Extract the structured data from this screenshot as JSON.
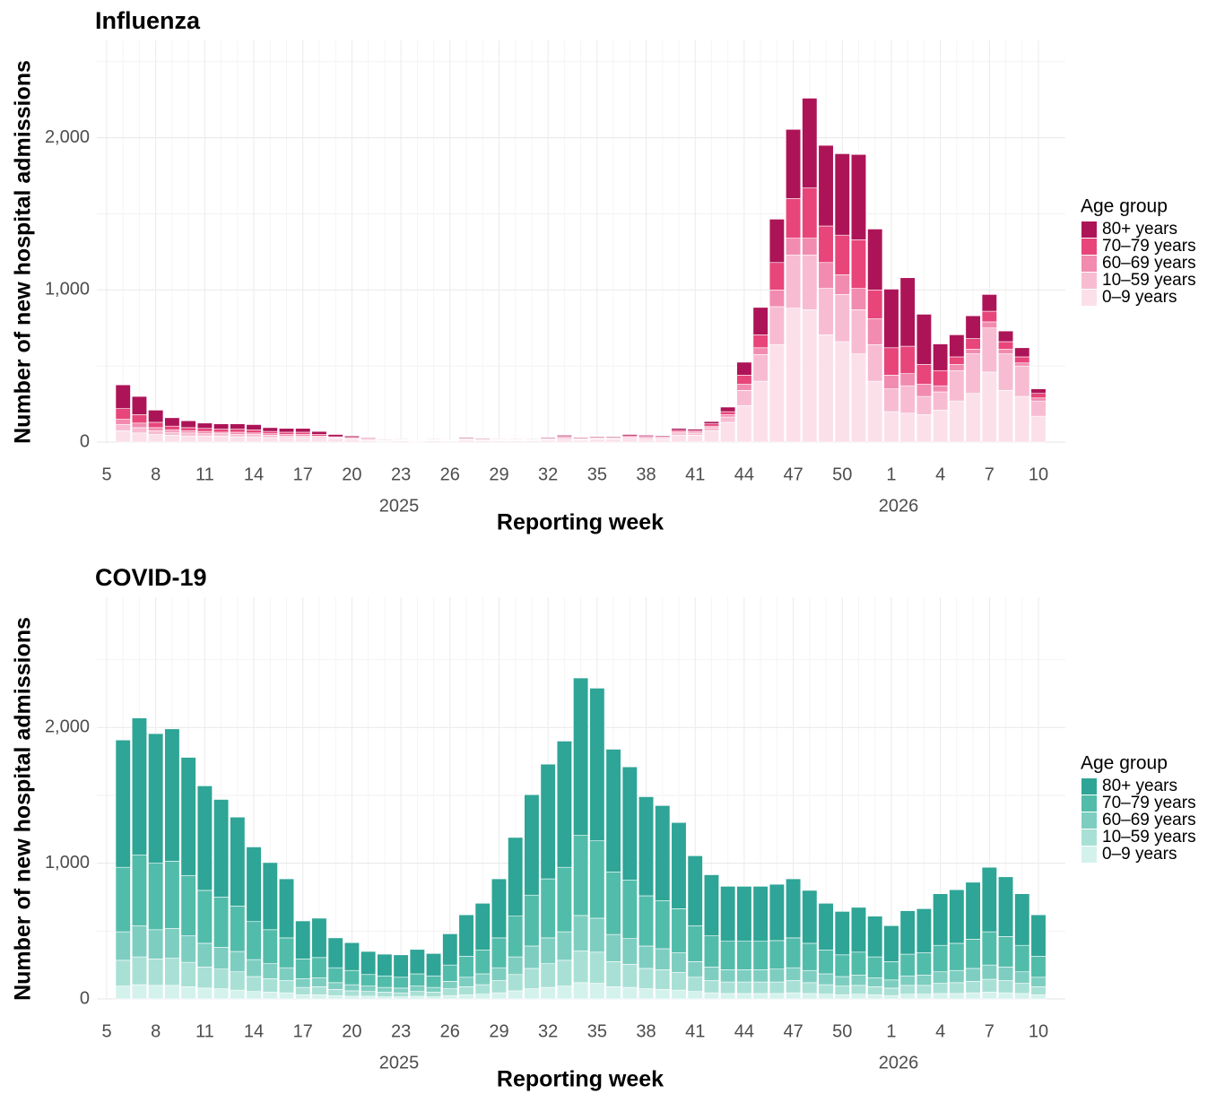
{
  "chart_data": [
    {
      "type": "bar",
      "stacked": true,
      "title": "Influenza",
      "x_label": "Reporting week",
      "y_label": "Number of new hospital admissions",
      "legend_title": "Age group",
      "legend_position": "right",
      "grid": true,
      "categories": [
        "5",
        null,
        null,
        "8",
        null,
        null,
        "11",
        null,
        null,
        "14",
        null,
        null,
        "17",
        null,
        null,
        "20",
        null,
        null,
        "23",
        null,
        null,
        "26",
        null,
        null,
        "29",
        null,
        null,
        "32",
        null,
        null,
        "35",
        null,
        null,
        "38",
        null,
        null,
        "41",
        null,
        null,
        "44",
        null,
        null,
        "47",
        null,
        null,
        "50",
        null,
        null,
        "1",
        null,
        null,
        "4",
        null,
        null,
        "7",
        null,
        null,
        "10"
      ],
      "x_group_labels": [
        "2025",
        "2026"
      ],
      "ylim": [
        0,
        2640
      ],
      "yticks": [
        0,
        {
          "value": 1000,
          "label": "1,000"
        },
        {
          "value": 2000,
          "label": "2,000"
        }
      ],
      "y_minor_gridlines": [
        500,
        1500,
        2500
      ],
      "series": [
        {
          "name": "80+ years",
          "color": "#ad1457",
          "values": [
            null,
            156,
            120,
            80,
            55,
            45,
            35,
            35,
            35,
            35,
            25,
            25,
            25,
            20,
            15,
            10,
            5,
            4,
            4,
            2,
            4,
            3,
            6,
            5,
            4,
            4,
            4,
            6,
            8,
            6,
            6,
            6,
            9,
            8,
            7,
            12,
            10,
            15,
            30,
            85,
            180,
            285,
            455,
            590,
            530,
            535,
            560,
            400,
            385,
            450,
            330,
            175,
            145,
            150,
            110,
            70,
            60,
            30
          ]
        },
        {
          "name": "70–79 years",
          "color": "#e8457a",
          "values": [
            null,
            70,
            55,
            35,
            25,
            20,
            20,
            20,
            20,
            20,
            15,
            15,
            15,
            10,
            5,
            5,
            5,
            2,
            3,
            1,
            3,
            2,
            4,
            3,
            3,
            3,
            3,
            4,
            6,
            4,
            5,
            5,
            7,
            6,
            6,
            10,
            9,
            15,
            20,
            60,
            85,
            180,
            260,
            330,
            240,
            260,
            320,
            190,
            180,
            180,
            130,
            100,
            50,
            70,
            70,
            50,
            40,
            30
          ]
        },
        {
          "name": "60–69 years",
          "color": "#f28bb0",
          "values": [
            null,
            35,
            30,
            20,
            15,
            15,
            15,
            10,
            15,
            10,
            10,
            10,
            10,
            5,
            5,
            5,
            5,
            2,
            2,
            1,
            2,
            2,
            3,
            3,
            2,
            2,
            2,
            3,
            5,
            3,
            4,
            4,
            5,
            5,
            4,
            8,
            7,
            10,
            15,
            40,
            45,
            110,
            110,
            110,
            170,
            130,
            140,
            170,
            90,
            80,
            80,
            40,
            40,
            30,
            40,
            30,
            20,
            20
          ]
        },
        {
          "name": "10–59 years",
          "color": "#f7bcd2",
          "values": [
            null,
            40,
            35,
            25,
            20,
            20,
            15,
            15,
            15,
            15,
            15,
            10,
            10,
            10,
            5,
            5,
            5,
            2,
            3,
            2,
            3,
            2,
            5,
            4,
            3,
            3,
            3,
            5,
            8,
            5,
            6,
            6,
            9,
            8,
            7,
            15,
            14,
            20,
            35,
            100,
            175,
            250,
            350,
            360,
            305,
            310,
            290,
            240,
            150,
            180,
            120,
            120,
            200,
            260,
            290,
            240,
            200,
            100
          ]
        },
        {
          "name": "0–9 years",
          "color": "#fbe0ea",
          "values": [
            null,
            75,
            60,
            50,
            45,
            40,
            40,
            40,
            35,
            35,
            30,
            30,
            30,
            25,
            20,
            15,
            10,
            5,
            8,
            4,
            8,
            6,
            12,
            10,
            8,
            8,
            8,
            12,
            18,
            12,
            14,
            14,
            20,
            18,
            16,
            45,
            45,
            75,
            130,
            240,
            400,
            640,
            880,
            870,
            705,
            660,
            580,
            400,
            200,
            190,
            180,
            210,
            270,
            320,
            460,
            340,
            300,
            170
          ]
        }
      ]
    },
    {
      "type": "bar",
      "stacked": true,
      "title": "COVID-19",
      "x_label": "Reporting week",
      "y_label": "Number of new hospital admissions",
      "legend_title": "Age group",
      "legend_position": "right",
      "grid": true,
      "categories": [
        "5",
        null,
        null,
        "8",
        null,
        null,
        "11",
        null,
        null,
        "14",
        null,
        null,
        "17",
        null,
        null,
        "20",
        null,
        null,
        "23",
        null,
        null,
        "26",
        null,
        null,
        "29",
        null,
        null,
        "32",
        null,
        null,
        "35",
        null,
        null,
        "38",
        null,
        null,
        "41",
        null,
        null,
        "44",
        null,
        null,
        "47",
        null,
        null,
        "50",
        null,
        null,
        "1",
        null,
        null,
        "4",
        null,
        null,
        "7",
        null,
        null,
        "10"
      ],
      "x_group_labels": [
        "2025",
        "2026"
      ],
      "ylim": [
        0,
        2960
      ],
      "yticks": [
        0,
        {
          "value": 1000,
          "label": "1,000"
        },
        {
          "value": 2000,
          "label": "2,000"
        }
      ],
      "y_minor_gridlines": [
        500,
        1500,
        2500
      ],
      "series": [
        {
          "name": "80+ years",
          "color": "#2ea596",
          "values": [
            null,
            938,
            1010,
            955,
            975,
            870,
            770,
            720,
            655,
            550,
            495,
            435,
            280,
            290,
            220,
            205,
            170,
            160,
            165,
            180,
            165,
            230,
            305,
            345,
            435,
            580,
            740,
            845,
            930,
            1160,
            1125,
            905,
            835,
            730,
            700,
            635,
            515,
            450,
            405,
            405,
            405,
            415,
            435,
            390,
            345,
            320,
            330,
            300,
            265,
            320,
            325,
            380,
            395,
            420,
            475,
            440,
            380,
            305
          ]
        },
        {
          "name": "70–79 years",
          "color": "#52bcaa",
          "values": [
            null,
            475,
            520,
            490,
            495,
            445,
            390,
            370,
            335,
            280,
            250,
            220,
            145,
            150,
            110,
            105,
            85,
            85,
            80,
            90,
            85,
            120,
            155,
            175,
            220,
            300,
            375,
            435,
            475,
            590,
            570,
            460,
            430,
            370,
            355,
            325,
            265,
            230,
            210,
            210,
            210,
            210,
            220,
            200,
            175,
            160,
            170,
            155,
            135,
            160,
            165,
            195,
            200,
            215,
            245,
            225,
            195,
            155
          ]
        },
        {
          "name": "60–69 years",
          "color": "#7dcec0",
          "values": [
            null,
            210,
            230,
            215,
            220,
            195,
            175,
            160,
            150,
            125,
            110,
            95,
            65,
            65,
            50,
            45,
            40,
            35,
            35,
            40,
            35,
            55,
            70,
            80,
            95,
            130,
            165,
            190,
            210,
            260,
            250,
            200,
            190,
            165,
            155,
            145,
            115,
            100,
            90,
            90,
            90,
            95,
            95,
            90,
            80,
            70,
            75,
            65,
            60,
            70,
            75,
            85,
            90,
            95,
            105,
            100,
            85,
            70
          ]
        },
        {
          "name": "10–59 years",
          "color": "#a9e0d5",
          "values": [
            null,
            190,
            205,
            195,
            200,
            180,
            155,
            145,
            135,
            110,
            100,
            90,
            55,
            60,
            45,
            40,
            35,
            35,
            30,
            35,
            35,
            50,
            60,
            70,
            90,
            120,
            150,
            175,
            190,
            235,
            230,
            185,
            170,
            150,
            145,
            130,
            105,
            90,
            85,
            85,
            85,
            85,
            90,
            80,
            70,
            65,
            65,
            60,
            55,
            65,
            65,
            75,
            80,
            85,
            95,
            90,
            75,
            60
          ]
        },
        {
          "name": "0–9 years",
          "color": "#d4f2ec",
          "values": [
            null,
            95,
            105,
            100,
            100,
            90,
            80,
            75,
            65,
            55,
            50,
            45,
            30,
            30,
            25,
            20,
            20,
            15,
            15,
            20,
            15,
            25,
            30,
            35,
            45,
            60,
            75,
            85,
            95,
            120,
            115,
            90,
            85,
            75,
            70,
            65,
            55,
            45,
            40,
            40,
            40,
            40,
            45,
            40,
            35,
            30,
            35,
            30,
            25,
            35,
            35,
            40,
            40,
            45,
            50,
            45,
            40,
            30
          ]
        }
      ]
    }
  ]
}
